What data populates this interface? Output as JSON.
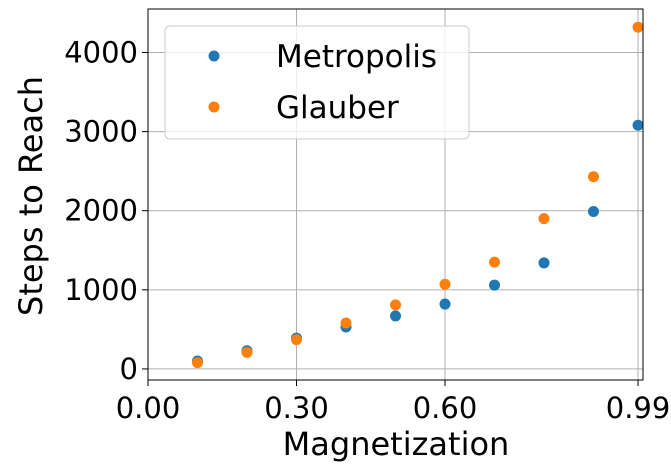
{
  "chart_data": {
    "type": "scatter",
    "title": "",
    "xlabel": "Magnetization",
    "ylabel": "Steps to Reach",
    "xlim": [
      0.0,
      1.0
    ],
    "ylim": [
      -140,
      4550
    ],
    "x_ticks": [
      0.0,
      0.3,
      0.6,
      0.99
    ],
    "x_tick_labels": [
      "0.00",
      "0.30",
      "0.60",
      "0.99"
    ],
    "y_ticks": [
      0,
      1000,
      2000,
      3000,
      4000
    ],
    "y_tick_labels": [
      "0",
      "1000",
      "2000",
      "3000",
      "4000"
    ],
    "grid": true,
    "legend_position": "top-left",
    "x": [
      0.1,
      0.2,
      0.3,
      0.4,
      0.5,
      0.6,
      0.7,
      0.8,
      0.9,
      0.99
    ],
    "series": [
      {
        "name": "Metropolis",
        "color": "#1f77b4",
        "values": [
          100,
          230,
          390,
          530,
          670,
          820,
          1060,
          1340,
          1990,
          3080
        ]
      },
      {
        "name": "Glauber",
        "color": "#ff7f0e",
        "values": [
          80,
          210,
          370,
          580,
          810,
          1070,
          1350,
          1900,
          2430,
          4320
        ]
      }
    ]
  }
}
